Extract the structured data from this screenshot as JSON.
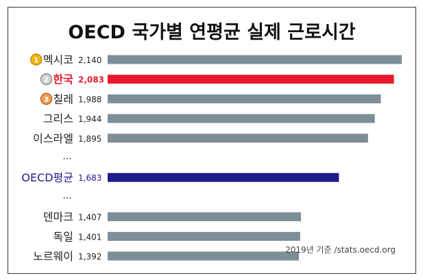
{
  "title": "OECD 국가별 연평균 실제 근로시간",
  "source_note": "2019년 기준 /stats.oecd.org",
  "ellipsis": "...",
  "colors": {
    "default": "#7d8e99",
    "korea": "#e8192c",
    "oecd": "#1f1a8c",
    "text": "#222222"
  },
  "chart_data": {
    "type": "bar",
    "orientation": "horizontal",
    "title": "OECD 국가별 연평균 실제 근로시간",
    "xlim": [
      0,
      2200
    ],
    "grid": false,
    "rows": [
      {
        "label": "멕시코",
        "value": 2140,
        "value_label": "2,140",
        "medal": "1",
        "style": "default",
        "gap_after": false
      },
      {
        "label": "한국",
        "value": 2083,
        "value_label": "2,083",
        "medal": "2",
        "style": "korea",
        "gap_after": false
      },
      {
        "label": "칠레",
        "value": 1988,
        "value_label": "1,988",
        "medal": "3",
        "style": "default",
        "gap_after": false
      },
      {
        "label": "그리스",
        "value": 1944,
        "value_label": "1,944",
        "style": "default",
        "gap_after": false
      },
      {
        "label": "이스라엘",
        "value": 1895,
        "value_label": "1,895",
        "style": "default",
        "gap_after": true
      },
      {
        "label": "OECD평균",
        "value": 1683,
        "value_label": "1,683",
        "style": "oecd",
        "gap_after": true
      },
      {
        "label": "덴마크",
        "value": 1407,
        "value_label": "1,407",
        "style": "default",
        "gap_after": false
      },
      {
        "label": "독일",
        "value": 1401,
        "value_label": "1,401",
        "style": "default",
        "gap_after": false
      },
      {
        "label": "노르웨이",
        "value": 1392,
        "value_label": "1,392",
        "style": "default",
        "gap_after": false
      }
    ]
  }
}
